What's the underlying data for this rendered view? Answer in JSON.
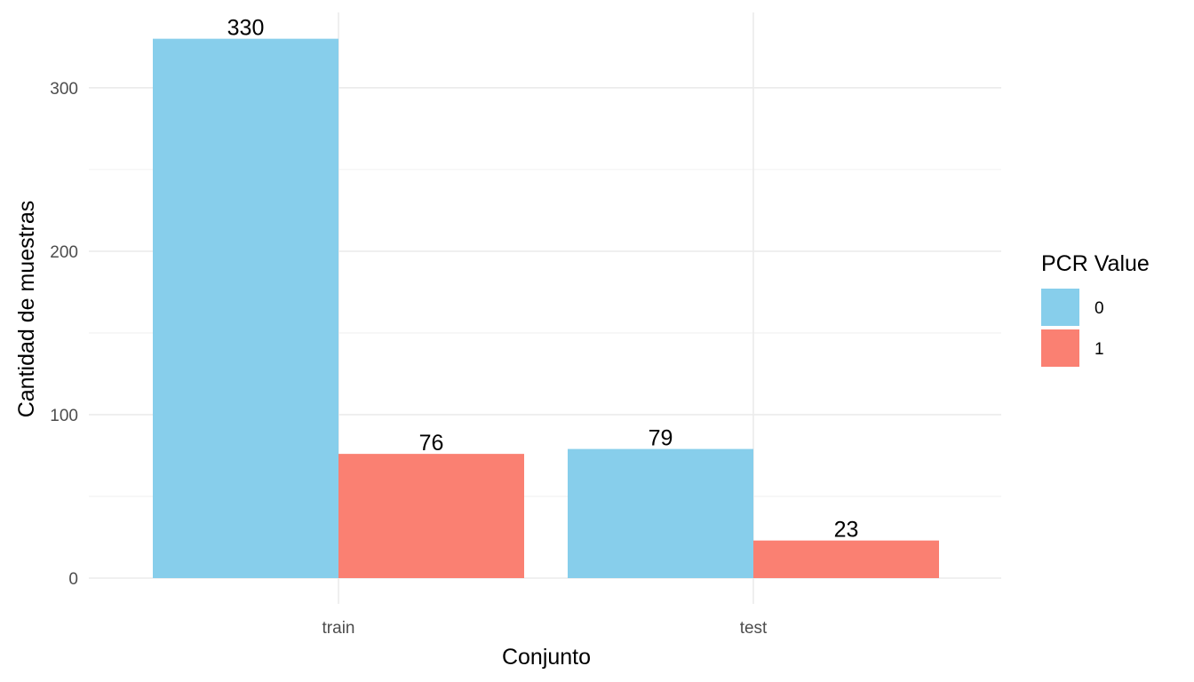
{
  "chart_data": {
    "type": "bar",
    "categories": [
      "train",
      "test"
    ],
    "series": [
      {
        "name": "0",
        "values": [
          330,
          79
        ],
        "color": "#87CEEB"
      },
      {
        "name": "1",
        "values": [
          76,
          23
        ],
        "color": "#FA8072"
      }
    ],
    "xlabel": "Conjunto",
    "ylabel": "Cantidad de muestras",
    "ylim": [
      0,
      347
    ],
    "yticks": [
      0,
      100,
      200,
      300
    ],
    "grid": true,
    "show_data_labels": true,
    "legend": {
      "title": "PCR Value",
      "position": "right"
    }
  }
}
